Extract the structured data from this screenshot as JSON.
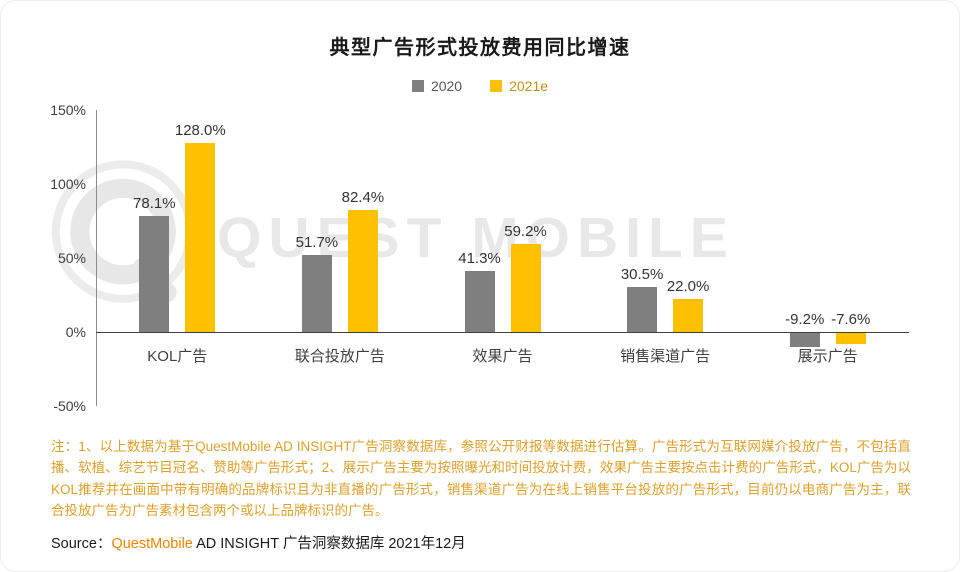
{
  "page": {
    "title": "典型广告形式投放费用同比增速",
    "watermark": "QUEST MOBILE",
    "note": "注：1、以上数据为基于QuestMobile AD INSIGHT广告洞察数据库，参照公开财报等数据进行估算。广告形式为互联网媒介投放广告，不包括直播、软植、综艺节目冠名、赞助等广告形式；2、展示广告主要为按照曝光和时间投放计费，效果广告主要按点击计费的广告形式，KOL广告为以KOL推荐并在画面中带有明确的品牌标识且为非直播的广告形式，销售渠道广告为在线上销售平台投放的广告形式，目前仍以电商广告为主，联合投放广告为广告素材包含两个或以上品牌标识的广告。",
    "source_prefix": "Source：",
    "source_brand": "QuestMobile",
    "source_suffix": " AD INSIGHT 广告洞察数据库 2021年12月"
  },
  "colors": {
    "series_2020": "#7F7F7F",
    "series_2021e": "#FFC000",
    "note_text": "#DFA02A",
    "brand_orange": "#F08300",
    "axis": "#404040",
    "watermark_gray": "#e7e7e7"
  },
  "chart_data": {
    "type": "bar",
    "title": "典型广告形式投放费用同比增速",
    "categories": [
      "KOL广告",
      "联合投放广告",
      "效果广告",
      "销售渠道广告",
      "展示广告"
    ],
    "series": [
      {
        "name": "2020",
        "color": "#7F7F7F",
        "values": [
          78.1,
          51.7,
          41.3,
          30.5,
          -9.2
        ]
      },
      {
        "name": "2021e",
        "color": "#FFC000",
        "values": [
          128.0,
          82.4,
          59.2,
          22.0,
          -7.6
        ]
      }
    ],
    "value_suffix": "%",
    "ylim": [
      -50,
      150
    ],
    "yticks": [
      150,
      100,
      50,
      0,
      -50
    ],
    "ytick_suffix": "%",
    "legend_position": "top",
    "grid": false
  }
}
